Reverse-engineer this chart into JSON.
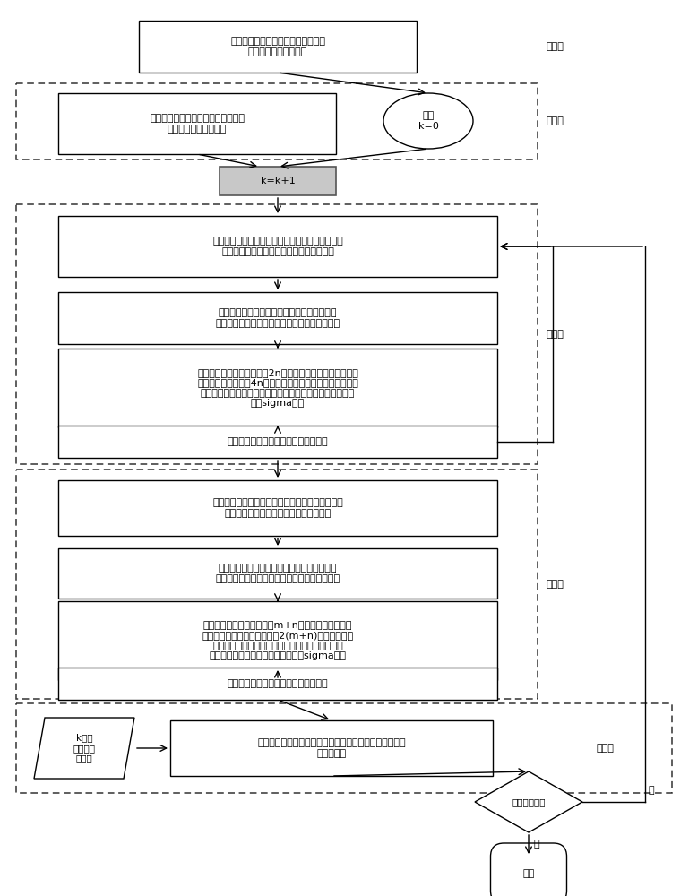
{
  "bg_color": "#ffffff",
  "font_color": "#000000",
  "box_fill": "#ffffff",
  "box_edge": "#000000",
  "gray_fill": "#c8c8c8",
  "dash_edge": "#555555",
  "step1_text": "根据实际工程应用，建立非线性系统\n的状态方程和测量方程",
  "step2_oval_text": "开始\nk=0",
  "step2_rect_text": "初始状态：确定系统初始状态，即初\n始状态的随机分布特征",
  "kk1_text": "k=k+1",
  "b4_text": "根据上一时刻的状态估计随机变量以及噪声随机变\n量的分布特征，估计该随机变量的密度函数",
  "b5_text": "根据所需匹配的高阶矩，确定样本点的分层，\n基于该分层，使用密度函数计算样本点的权重。",
  "b6_text": "在每一层的预样本集合中选2n个正交点以及它们关于均值的\n对称点，进一步对这4n个点一致地添加一个调节系数，然后\n使用所有预样本以及它们的调节系数匹配高阶矩，通过匹配\n得到sigma点。",
  "b7_text": "随机变量状态方程变换的分布特征计算",
  "b8_text": "根据上一步的状态估计随机变量以及噪声随机变量\n的分布特征，估计该随机变量的密度函数",
  "b9_text": "根据所需匹配的高阶矩，确定样本点的分层，\n基于该分层，使用密度函数计算样本点的权重。",
  "b10_text": "在每一层的预样本集合中选m+n个正交点以及它们关\n于均值的对称点，进一步对这2(m+n)个点一致地添\n加一个调节系数，然后使用所有预样本以及它们的\n调节系数匹配高阶矩，通过匹配得到sigma点。",
  "b11_text": "随机变量量测方程变换的分布特征计算",
  "s5k_text": "k时刻\n实际测量\n数据值",
  "s5main_text": "使用卡尔曼增益融合状态预测以及测量数据计算最优状态\n的分布特征",
  "s5diam_text": "是否终止迭代",
  "end_text": "结束",
  "label1": "步骤一",
  "label2": "步骤二",
  "label3": "步骤三",
  "label4": "步骤四",
  "label5": "步骤五",
  "yes_text": "是",
  "no_text": "否"
}
